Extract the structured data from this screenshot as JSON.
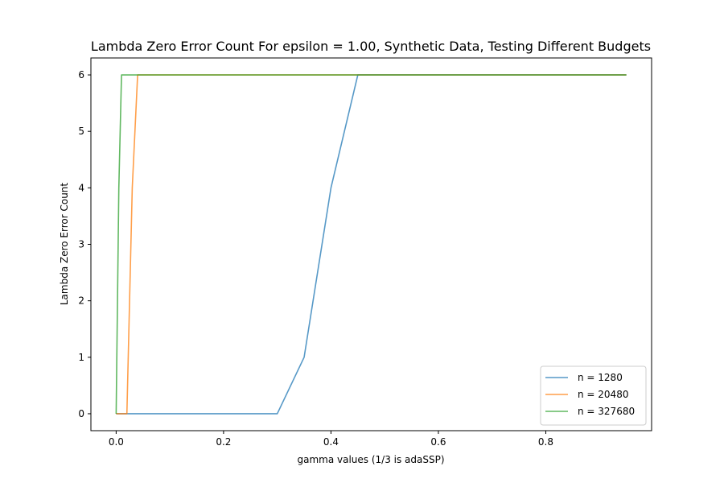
{
  "chart_data": {
    "type": "line",
    "title": "Lambda Zero Error Count For epsilon = 1.00, Synthetic Data, Testing Different Budgets",
    "xlabel": "gamma values (1/3 is adaSSP)",
    "ylabel": "Lambda Zero Error Count",
    "xlim": [
      -0.047,
      0.997
    ],
    "ylim": [
      -0.3,
      6.3
    ],
    "xticks": [
      0.0,
      0.2,
      0.4,
      0.6,
      0.8
    ],
    "xtick_labels": [
      "0.0",
      "0.2",
      "0.4",
      "0.6",
      "0.8"
    ],
    "yticks": [
      0,
      1,
      2,
      3,
      4,
      5,
      6
    ],
    "ytick_labels": [
      "0",
      "1",
      "2",
      "3",
      "4",
      "5",
      "6"
    ],
    "grid": false,
    "legend_position": "bottom-right",
    "series": [
      {
        "name": "n = 1280",
        "color": "#1f77b4",
        "x": [
          0.0,
          0.3,
          0.35,
          0.4,
          0.45,
          0.95
        ],
        "y": [
          0,
          0,
          1,
          4,
          6,
          6
        ]
      },
      {
        "name": "n = 20480",
        "color": "#ff7f0e",
        "x": [
          0.0,
          0.02,
          0.03,
          0.04,
          0.95
        ],
        "y": [
          0,
          0,
          4,
          6,
          6
        ]
      },
      {
        "name": "n = 327680",
        "color": "#2ca02c",
        "x": [
          0.0,
          0.005,
          0.01,
          0.95
        ],
        "y": [
          0,
          4,
          6,
          6
        ]
      }
    ]
  }
}
